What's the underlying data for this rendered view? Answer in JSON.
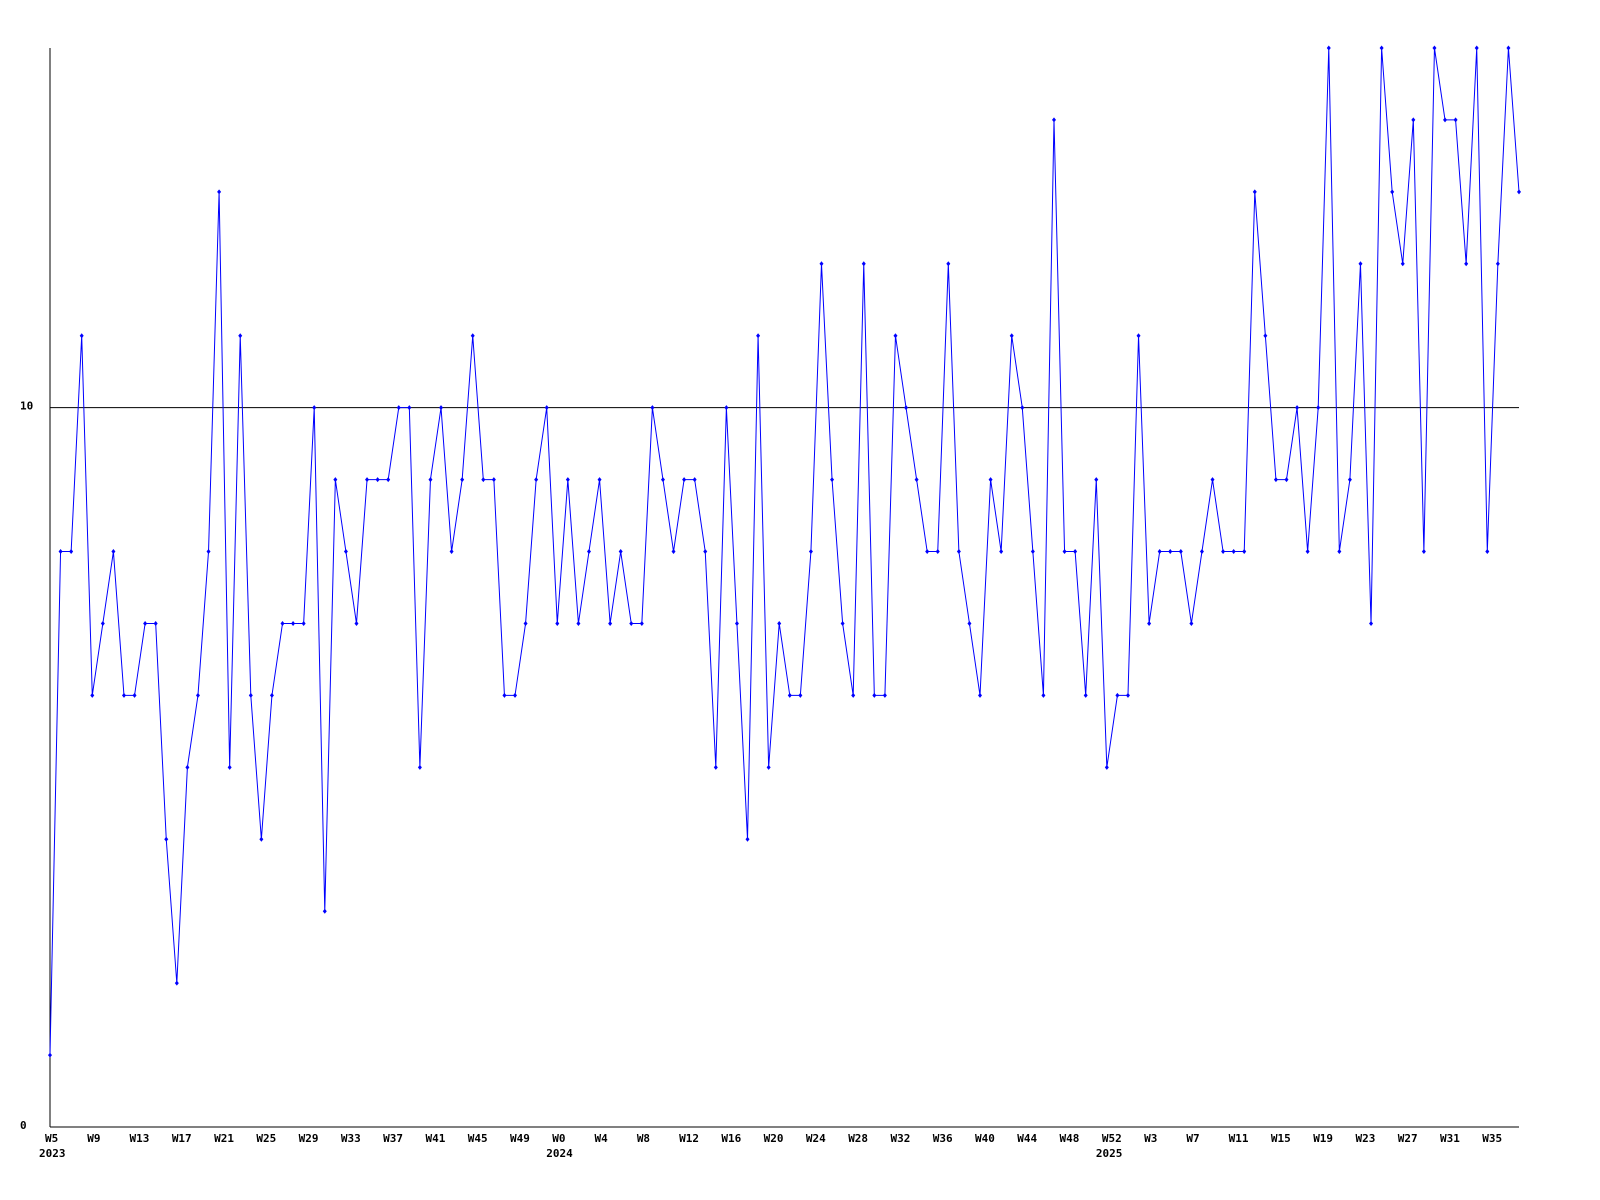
{
  "chart_data": {
    "type": "line",
    "categories": [
      "W5",
      null,
      null,
      null,
      "W9",
      null,
      null,
      null,
      "W13",
      null,
      null,
      null,
      "W17",
      null,
      null,
      null,
      "W21",
      null,
      null,
      null,
      "W25",
      null,
      null,
      null,
      "W29",
      null,
      null,
      null,
      "W33",
      null,
      null,
      null,
      "W37",
      null,
      null,
      null,
      "W41",
      null,
      null,
      null,
      "W45",
      null,
      null,
      null,
      "W49",
      null,
      null,
      null,
      "W0",
      null,
      null,
      null,
      "W4",
      null,
      null,
      null,
      "W8",
      null,
      null,
      null,
      "W12",
      null,
      null,
      null,
      "W16",
      null,
      null,
      null,
      "W20",
      null,
      null,
      null,
      "W24",
      null,
      null,
      null,
      "W28",
      null,
      null,
      null,
      "W32",
      null,
      null,
      null,
      "W36",
      null,
      null,
      null,
      "W40",
      null,
      null,
      null,
      "W44",
      null,
      null,
      null,
      "W48",
      null,
      null,
      null,
      "W52",
      null,
      null,
      null,
      "W3",
      null,
      null,
      null,
      "W7",
      null,
      null,
      null,
      "W11",
      null,
      null,
      null,
      "W15",
      null,
      null,
      null,
      "W19",
      null,
      null,
      null,
      "W23",
      null,
      null,
      null,
      "W27",
      null,
      null,
      null,
      "W31",
      null,
      null,
      null,
      "W35",
      null,
      null,
      null
    ],
    "category_years": [
      "2023",
      null,
      null,
      null,
      null,
      null,
      null,
      null,
      null,
      null,
      null,
      null,
      null,
      null,
      null,
      null,
      null,
      null,
      null,
      null,
      null,
      null,
      null,
      null,
      null,
      null,
      null,
      null,
      null,
      null,
      null,
      null,
      null,
      null,
      null,
      null,
      null,
      null,
      null,
      null,
      null,
      null,
      null,
      null,
      null,
      null,
      null,
      null,
      "2024",
      null,
      null,
      null,
      null,
      null,
      null,
      null,
      null,
      null,
      null,
      null,
      null,
      null,
      null,
      null,
      null,
      null,
      null,
      null,
      null,
      null,
      null,
      null,
      null,
      null,
      null,
      null,
      null,
      null,
      null,
      null,
      null,
      null,
      null,
      null,
      null,
      null,
      null,
      null,
      null,
      null,
      null,
      null,
      null,
      null,
      null,
      null,
      null,
      null,
      null,
      null,
      "2025",
      null,
      null,
      null,
      null,
      null,
      null,
      null,
      null,
      null,
      null,
      null,
      null,
      null,
      null,
      null,
      null,
      null,
      null,
      null,
      null,
      null,
      null,
      null,
      null,
      null,
      null,
      null,
      null,
      null,
      null,
      null,
      null,
      null,
      null,
      null,
      null,
      null,
      null,
      null
    ],
    "series": [
      {
        "color": "#0000ff",
        "values": [
          1,
          8,
          8,
          11,
          6,
          7,
          8,
          6,
          6,
          7,
          7,
          4,
          2,
          5,
          6,
          8,
          13,
          5,
          11,
          6,
          4,
          6,
          7,
          7,
          7,
          10,
          3,
          9,
          8,
          7,
          9,
          9,
          9,
          10,
          10,
          5,
          9,
          10,
          8,
          9,
          11,
          9,
          9,
          6,
          6,
          7,
          9,
          10,
          7,
          9,
          7,
          8,
          9,
          7,
          8,
          7,
          7,
          10,
          9,
          8,
          9,
          9,
          8,
          5,
          10,
          7,
          4,
          11,
          5,
          7,
          6,
          6,
          8,
          12,
          9,
          7,
          6,
          12,
          6,
          6,
          11,
          10,
          9,
          8,
          8,
          12,
          8,
          7,
          6,
          9,
          8,
          11,
          10,
          8,
          6,
          14,
          8,
          8,
          6,
          9,
          5,
          6,
          6,
          11,
          7,
          8,
          8,
          8,
          7,
          8,
          9,
          8,
          8,
          8,
          13,
          11,
          9,
          9,
          10,
          8,
          10,
          15,
          8,
          9,
          12,
          7,
          15,
          13,
          12,
          14,
          8,
          15,
          14,
          14,
          12,
          15,
          8,
          12,
          15,
          13
        ]
      }
    ],
    "ylim": [
      0,
      15
    ],
    "yticks": [
      0,
      10
    ],
    "grid": true
  }
}
